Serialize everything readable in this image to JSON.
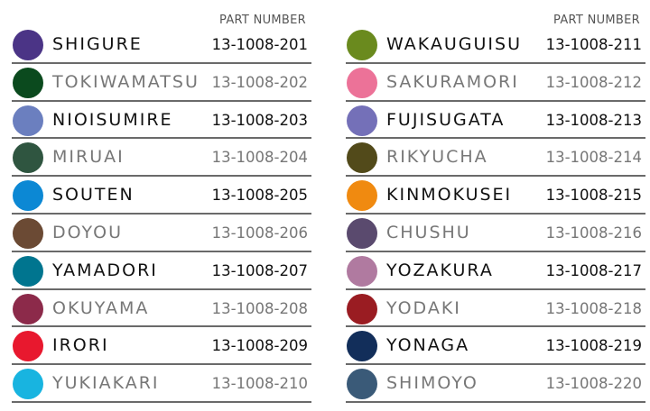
{
  "part_number_label": "PART NUMBER",
  "columns": [
    {
      "items": [
        {
          "name": "SHIGURE",
          "part": "13-1008-201",
          "color": "#4b3486"
        },
        {
          "name": "TOKIWAMATSU",
          "part": "13-1008-202",
          "color": "#0b4a1e"
        },
        {
          "name": "NIOISUMIRE",
          "part": "13-1008-203",
          "color": "#6b7fbf"
        },
        {
          "name": "MIRUAI",
          "part": "13-1008-204",
          "color": "#2f5540"
        },
        {
          "name": "SOUTEN",
          "part": "13-1008-205",
          "color": "#0c88d4"
        },
        {
          "name": "DOYOU",
          "part": "13-1008-206",
          "color": "#6b4a34"
        },
        {
          "name": "YAMADORI",
          "part": "13-1008-207",
          "color": "#00758f"
        },
        {
          "name": "OKUYAMA",
          "part": "13-1008-208",
          "color": "#8c2a4a"
        },
        {
          "name": "IRORI",
          "part": "13-1008-209",
          "color": "#e8182e"
        },
        {
          "name": "YUKIAKARI",
          "part": "13-1008-210",
          "color": "#18b4e0"
        }
      ]
    },
    {
      "items": [
        {
          "name": "WAKAUGUISU",
          "part": "13-1008-211",
          "color": "#6a8a1e"
        },
        {
          "name": "SAKURAMORI",
          "part": "13-1008-212",
          "color": "#ec7298"
        },
        {
          "name": "FUJISUGATA",
          "part": "13-1008-213",
          "color": "#7470b8"
        },
        {
          "name": "RIKYUCHA",
          "part": "13-1008-214",
          "color": "#524a1a"
        },
        {
          "name": "KINMOKUSEI",
          "part": "13-1008-215",
          "color": "#f08a10"
        },
        {
          "name": "CHUSHU",
          "part": "13-1008-216",
          "color": "#5a4a6e"
        },
        {
          "name": "YOZAKURA",
          "part": "13-1008-217",
          "color": "#b07aa0"
        },
        {
          "name": "YODAKI",
          "part": "13-1008-218",
          "color": "#9a1c22"
        },
        {
          "name": "YONAGA",
          "part": "13-1008-219",
          "color": "#122e5a"
        },
        {
          "name": "SHIMOYO",
          "part": "13-1008-220",
          "color": "#3a5a78"
        }
      ]
    }
  ]
}
